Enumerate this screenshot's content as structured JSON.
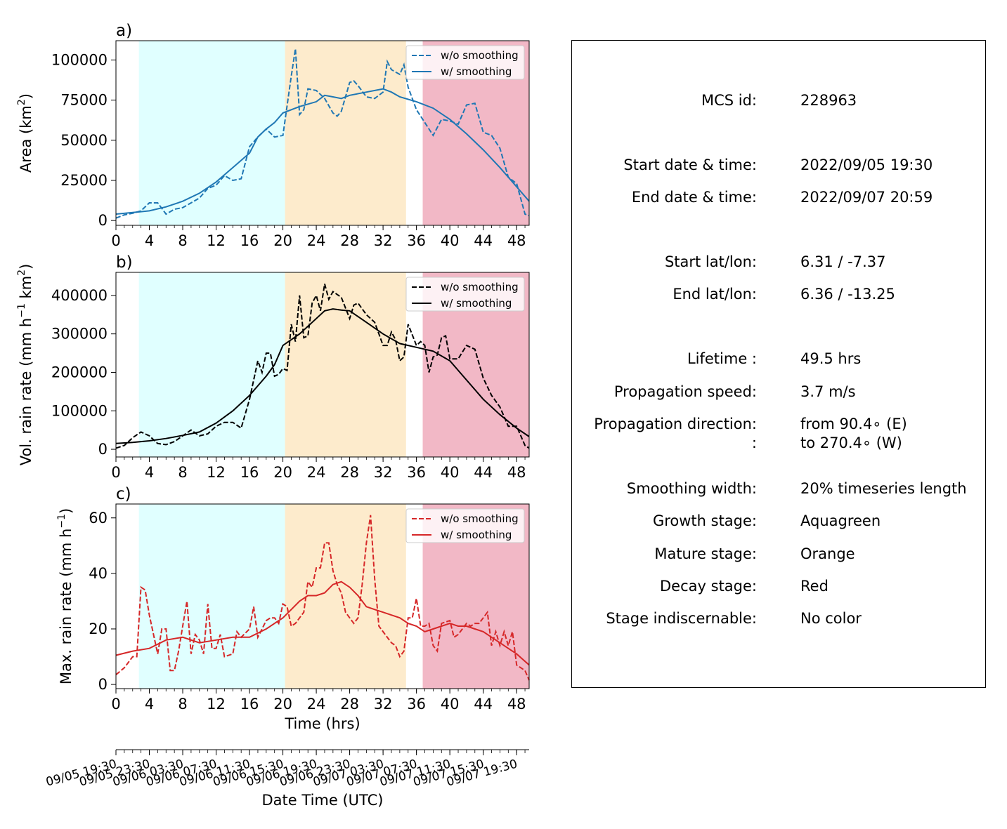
{
  "chart_data": [
    {
      "type": "line",
      "panel_label": "a)",
      "ylabel": "Area  (km$^2$)",
      "ylabel_parts": [
        "Area  (km",
        "2",
        ")"
      ],
      "xlim": [
        0,
        49.5
      ],
      "ylim": [
        -3000,
        112000
      ],
      "x_ticks": [
        "0",
        "4",
        "8",
        "12",
        "16",
        "20",
        "24",
        "28",
        "32",
        "36",
        "40",
        "44",
        "48"
      ],
      "y_ticks": [
        "0",
        "25000",
        "50000",
        "75000",
        "100000"
      ],
      "y_tick_values": [
        0,
        25000,
        50000,
        75000,
        100000
      ],
      "color": "#1f77b4",
      "legend": [
        "w/o smoothing",
        "w/ smoothing"
      ],
      "legend_position": "top-right",
      "shaded_stages": [
        {
          "start": 2.75,
          "end": 20.25,
          "color": "#e0ffff"
        },
        {
          "start": 20.25,
          "end": 34.75,
          "color": "#fdebcc"
        },
        {
          "start": 36.75,
          "end": 49.5,
          "color": "#f2b8c6"
        }
      ],
      "series": [
        {
          "name": "w/o smoothing",
          "dashed": true,
          "x": [
            0,
            1,
            2,
            3,
            4,
            5,
            6,
            7,
            8,
            9,
            10,
            11,
            12,
            13,
            14,
            15,
            16,
            17,
            18,
            19,
            20,
            21,
            21.5,
            22,
            22.5,
            23,
            24,
            25,
            26,
            26.5,
            27,
            28,
            28.5,
            29,
            30,
            31,
            32,
            32.5,
            33,
            34,
            34.5,
            35,
            36,
            37,
            38,
            39,
            40,
            41,
            42,
            43,
            44,
            45,
            46,
            47,
            48,
            49,
            49.5
          ],
          "y": [
            1500,
            3500,
            4500,
            6000,
            11000,
            11000,
            4000,
            7000,
            8000,
            11000,
            14000,
            20000,
            22000,
            28000,
            25000,
            26000,
            46000,
            52000,
            57000,
            52000,
            53000,
            90000,
            107000,
            66000,
            69000,
            82000,
            81000,
            76000,
            67000,
            65000,
            68000,
            86000,
            87000,
            84000,
            77000,
            76000,
            80000,
            99000,
            94000,
            91000,
            97000,
            83000,
            69000,
            61000,
            53000,
            63000,
            62000,
            60000,
            72000,
            73000,
            55000,
            53000,
            45000,
            27000,
            23000,
            4000,
            3000
          ]
        },
        {
          "name": "w/ smoothing",
          "dashed": false,
          "x": [
            0,
            2,
            4,
            6,
            8,
            10,
            12,
            14,
            16,
            17,
            18,
            19,
            20,
            22,
            24,
            25,
            26,
            27,
            28,
            30,
            32,
            33,
            34,
            36,
            38,
            40,
            42,
            44,
            46,
            48,
            49.5
          ],
          "y": [
            4000,
            5000,
            6000,
            8500,
            12000,
            17000,
            24000,
            33000,
            42000,
            52000,
            57000,
            61000,
            67000,
            71000,
            74000,
            78000,
            77000,
            76000,
            78000,
            80000,
            82000,
            80000,
            77000,
            74000,
            70000,
            63000,
            54000,
            44000,
            33000,
            21000,
            12000
          ]
        }
      ]
    },
    {
      "type": "line",
      "panel_label": "b)",
      "ylabel": "Vol. rain rate (mm h$^{-1}$ km$^2$)",
      "ylabel_parts": [
        "Vol. rain rate (mm h",
        "−1",
        " km",
        "2",
        ")"
      ],
      "xlim": [
        0,
        49.5
      ],
      "ylim": [
        -20000,
        460000
      ],
      "x_ticks": [
        "0",
        "4",
        "8",
        "12",
        "16",
        "20",
        "24",
        "28",
        "32",
        "36",
        "40",
        "44",
        "48"
      ],
      "y_ticks": [
        "0",
        "100000",
        "200000",
        "300000",
        "400000"
      ],
      "y_tick_values": [
        0,
        100000,
        200000,
        300000,
        400000
      ],
      "color": "#000000",
      "legend": [
        "w/o smoothing",
        "w/ smoothing"
      ],
      "legend_position": "top-right",
      "shaded_stages": [
        {
          "start": 2.75,
          "end": 20.25,
          "color": "#e0ffff"
        },
        {
          "start": 20.25,
          "end": 34.75,
          "color": "#fdebcc"
        },
        {
          "start": 36.75,
          "end": 49.5,
          "color": "#f2b8c6"
        }
      ],
      "series": [
        {
          "name": "w/o smoothing",
          "dashed": true,
          "x": [
            0,
            1,
            2,
            3,
            4,
            5,
            6,
            7,
            8,
            9,
            10,
            11,
            12,
            13,
            14,
            15,
            16,
            17,
            17.5,
            18,
            18.5,
            19,
            19.5,
            20,
            20.5,
            21,
            21.5,
            22,
            22.5,
            23,
            23.5,
            24,
            24.5,
            25,
            25.5,
            26,
            27,
            28,
            28.5,
            29,
            30,
            31,
            31.5,
            32,
            32.5,
            33,
            33.5,
            34,
            34.5,
            35,
            36,
            36.5,
            37,
            37.5,
            38,
            38.5,
            39,
            39.5,
            40,
            41,
            42,
            43,
            44,
            45,
            46,
            47,
            48,
            49,
            49.5
          ],
          "y": [
            3000,
            10000,
            30000,
            45000,
            35000,
            15000,
            12000,
            20000,
            35000,
            50000,
            35000,
            40000,
            60000,
            70000,
            70000,
            55000,
            130000,
            230000,
            200000,
            250000,
            250000,
            190000,
            195000,
            210000,
            205000,
            325000,
            280000,
            400000,
            290000,
            295000,
            380000,
            400000,
            360000,
            430000,
            390000,
            410000,
            395000,
            340000,
            375000,
            380000,
            350000,
            330000,
            300000,
            270000,
            270000,
            305000,
            285000,
            230000,
            240000,
            325000,
            270000,
            280000,
            270000,
            200000,
            240000,
            245000,
            290000,
            295000,
            235000,
            235000,
            270000,
            260000,
            185000,
            140000,
            110000,
            60000,
            60000,
            10000,
            3000
          ]
        },
        {
          "name": "w/ smoothing",
          "dashed": false,
          "x": [
            0,
            2,
            4,
            6,
            8,
            10,
            12,
            14,
            16,
            17,
            18,
            19,
            20,
            22,
            24,
            25,
            26,
            27,
            28,
            30,
            32,
            34,
            36,
            38,
            40,
            42,
            44,
            46,
            48,
            49.5
          ],
          "y": [
            15000,
            18000,
            22000,
            28000,
            36000,
            45000,
            68000,
            100000,
            140000,
            165000,
            190000,
            220000,
            270000,
            300000,
            340000,
            360000,
            365000,
            362000,
            360000,
            330000,
            300000,
            275000,
            265000,
            255000,
            230000,
            180000,
            130000,
            90000,
            55000,
            33000
          ]
        }
      ]
    },
    {
      "type": "line",
      "panel_label": "c)",
      "ylabel": "Max. rain rate  (mm h$^{-1}$)",
      "ylabel_parts": [
        "Max. rain rate  (mm h",
        "−1",
        ")"
      ],
      "xlabel": "Time (hrs)",
      "xlim": [
        0,
        49.5
      ],
      "ylim": [
        -1.5,
        65
      ],
      "x_ticks": [
        "0",
        "4",
        "8",
        "12",
        "16",
        "20",
        "24",
        "28",
        "32",
        "36",
        "40",
        "44",
        "48"
      ],
      "y_ticks": [
        "0",
        "20",
        "40",
        "60"
      ],
      "y_tick_values": [
        0,
        20,
        40,
        60
      ],
      "color": "#d62728",
      "legend": [
        "w/o smoothing",
        "w/ smoothing"
      ],
      "legend_position": "top-right",
      "shaded_stages": [
        {
          "start": 2.75,
          "end": 20.25,
          "color": "#e0ffff"
        },
        {
          "start": 20.25,
          "end": 34.75,
          "color": "#fdebcc"
        },
        {
          "start": 36.75,
          "end": 49.5,
          "color": "#f2b8c6"
        }
      ],
      "series": [
        {
          "name": "w/o smoothing",
          "dashed": true,
          "x": [
            0,
            1,
            2,
            2.5,
            3,
            3.5,
            4,
            5,
            5.5,
            6,
            6.5,
            7,
            7.5,
            8,
            8.5,
            9,
            9.5,
            10,
            10.5,
            11,
            11.5,
            12,
            12.5,
            13,
            14,
            14.5,
            15,
            16,
            16.5,
            17,
            17.5,
            18,
            18.5,
            19,
            19.5,
            20,
            20.5,
            21,
            21.5,
            22,
            22.5,
            23,
            23.5,
            24,
            24.5,
            25,
            25.5,
            26,
            26.5,
            27,
            27.5,
            28,
            28.5,
            29,
            29.5,
            30,
            30.5,
            31,
            31.5,
            32,
            33,
            33.5,
            34,
            34.5,
            35,
            35.5,
            36,
            36.5,
            37,
            37.5,
            38,
            38.5,
            39,
            40,
            40.5,
            41,
            42,
            42.5,
            43,
            43.5,
            44,
            44.5,
            45,
            45.5,
            46,
            46.5,
            47,
            47.5,
            48,
            49,
            49.5
          ],
          "y": [
            3.5,
            6,
            10,
            10,
            35,
            34,
            25,
            11,
            20,
            20,
            5,
            5,
            12,
            21,
            30,
            11,
            18,
            16,
            11,
            29,
            13,
            13,
            18,
            10,
            11,
            19,
            17,
            20,
            28,
            17,
            20,
            23,
            24,
            24,
            22,
            29,
            28,
            21,
            22,
            24,
            26,
            37,
            35,
            42,
            42,
            51,
            51,
            41,
            36,
            33,
            26,
            24,
            22,
            24,
            36,
            51,
            61,
            38,
            21,
            19,
            15,
            14,
            10,
            12,
            24,
            24,
            31,
            21,
            21,
            22,
            14,
            12,
            22,
            23,
            17,
            18,
            22,
            21,
            22,
            22,
            24,
            26,
            14,
            19,
            14,
            19,
            14,
            19,
            7,
            5,
            1.5
          ]
        },
        {
          "name": "w/ smoothing",
          "dashed": false,
          "x": [
            0,
            2,
            4,
            6,
            8,
            10,
            12,
            14,
            16,
            18,
            19,
            20,
            21,
            22,
            23,
            24,
            25,
            26,
            27,
            28,
            29,
            30,
            31,
            32,
            33,
            34,
            35,
            36,
            37,
            38,
            39,
            40,
            41,
            42,
            43,
            44,
            45,
            46,
            47,
            48,
            49.5
          ],
          "y": [
            10.5,
            12,
            13,
            16,
            17,
            15,
            16,
            17,
            17,
            20,
            22,
            24,
            27,
            30,
            32,
            32,
            33,
            36,
            37,
            35,
            32,
            28,
            27,
            26,
            25,
            24,
            22,
            21,
            19,
            20,
            21,
            22,
            21,
            21,
            20,
            19,
            17,
            15,
            13,
            11,
            7
          ]
        }
      ]
    }
  ],
  "bottom_axis": {
    "label": "Date Time (UTC)",
    "tick_labels": [
      "09/05 19:30",
      "09/05 23:30",
      "09/06 03:30",
      "09/06 07:30",
      "09/06 11:30",
      "09/06 15:30",
      "09/06 19:30",
      "09/06 23:30",
      "09/07 03:30",
      "09/07 07:30",
      "09/07 11:30",
      "09/07 15:30",
      "09/07 19:30"
    ]
  },
  "info": [
    {
      "key": "MCS id:",
      "value": "228963"
    },
    {
      "key": "Start date & time:",
      "value": "2022/09/05 19:30"
    },
    {
      "key": "End date & time:",
      "value": "2022/09/07 20:59"
    },
    {
      "key": "Start lat/lon:",
      "value": "6.31 / -7.37"
    },
    {
      "key": "End lat/lon:",
      "value": "6.36 / -13.25"
    },
    {
      "key": "Lifetime :",
      "value": "49.5 hrs"
    },
    {
      "key": "Propagation speed:",
      "value": "3.7 m/s"
    },
    {
      "key": "Propagation direction:",
      "value": "from  90.4∘ (E)"
    },
    {
      "key": ":",
      "value": "to   270.4∘ (W)"
    },
    {
      "key": "Smoothing width:",
      "value": "20% timeseries length"
    },
    {
      "key": "Growth stage:",
      "value": "Aquagreen"
    },
    {
      "key": "Mature stage:",
      "value": "Orange"
    },
    {
      "key": "Decay stage:",
      "value": "Red"
    },
    {
      "key": "Stage indiscernable:",
      "value": "No color"
    }
  ]
}
